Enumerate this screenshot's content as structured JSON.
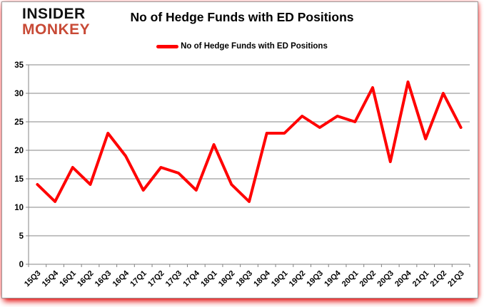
{
  "logo": {
    "line1": "INSIDER",
    "line2": "MONKEY"
  },
  "header": {
    "title": "No of Hedge Funds with ED Positions"
  },
  "legend": {
    "label": "No of Hedge Funds with ED Positions"
  },
  "colors": {
    "series_line": "#ff0000",
    "grid": "#848484",
    "axis": "#848484",
    "text": "#000000",
    "logo_black": "#111111",
    "logo_red": "#c84a36",
    "frame_glow": "#e10000"
  },
  "chart_data": {
    "type": "line",
    "title": "No of Hedge Funds with ED Positions",
    "xlabel": "",
    "ylabel": "",
    "categories": [
      "15Q3",
      "15Q4",
      "16Q1",
      "16Q2",
      "16Q3",
      "16Q4",
      "17Q1",
      "17Q2",
      "17Q3",
      "17Q4",
      "18Q1",
      "18Q2",
      "18Q3",
      "18Q4",
      "19Q1",
      "19Q2",
      "19Q3",
      "19Q4",
      "20Q1",
      "20Q2",
      "20Q3",
      "20Q4",
      "21Q1",
      "21Q2",
      "21Q3"
    ],
    "series": [
      {
        "name": "No of Hedge Funds with ED Positions",
        "color": "#ff0000",
        "values": [
          14,
          11,
          17,
          14,
          23,
          19,
          13,
          17,
          16,
          13,
          21,
          14,
          11,
          23,
          23,
          26,
          24,
          26,
          25,
          31,
          18,
          32,
          22,
          30,
          24
        ]
      }
    ],
    "ylim": [
      0,
      35
    ],
    "yticks": [
      0,
      5,
      10,
      15,
      20,
      25,
      30,
      35
    ],
    "grid": true,
    "legend_position": "top",
    "x_label_rotation_deg": -45
  }
}
